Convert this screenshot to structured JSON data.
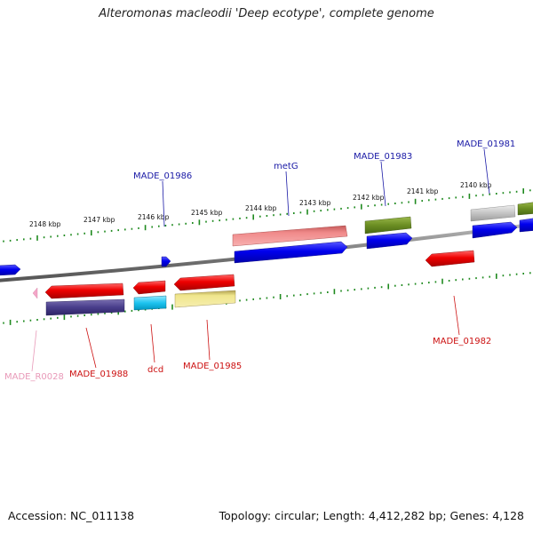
{
  "title": "Alteromonas macleodii 'Deep ecotype', complete genome",
  "accession": "Accession: NC_011138",
  "summary": "Topology: circular; Length: 4,412,282 bp; Genes: 4,128",
  "kbp_labels": [
    "2148 kbp",
    "2147 kbp",
    "2146 kbp",
    "2145 kbp",
    "2144 kbp",
    "2143 kbp",
    "2142 kbp",
    "2141 kbp",
    "2140 kbp"
  ],
  "gene_labels": {
    "made_01986": "MADE_01986",
    "metg": "metG",
    "made_01983": "MADE_01983",
    "made_01981": "MADE_01981",
    "made_r0028": "MADE_R0028",
    "made_01988": "MADE_01988",
    "dcd": "dcd",
    "made_01985": "MADE_01985",
    "made_01982": "MADE_01982"
  },
  "colors": {
    "forward_gene": "#0000ee",
    "reverse_gene": "#ee0000",
    "rrna_pink": "#f48fb1",
    "backbone": "#888888",
    "tick_green": "#1f8a1f",
    "label_blue": "#1a1aa6",
    "label_red": "#cc1111",
    "label_pink": "#e899b8"
  }
}
